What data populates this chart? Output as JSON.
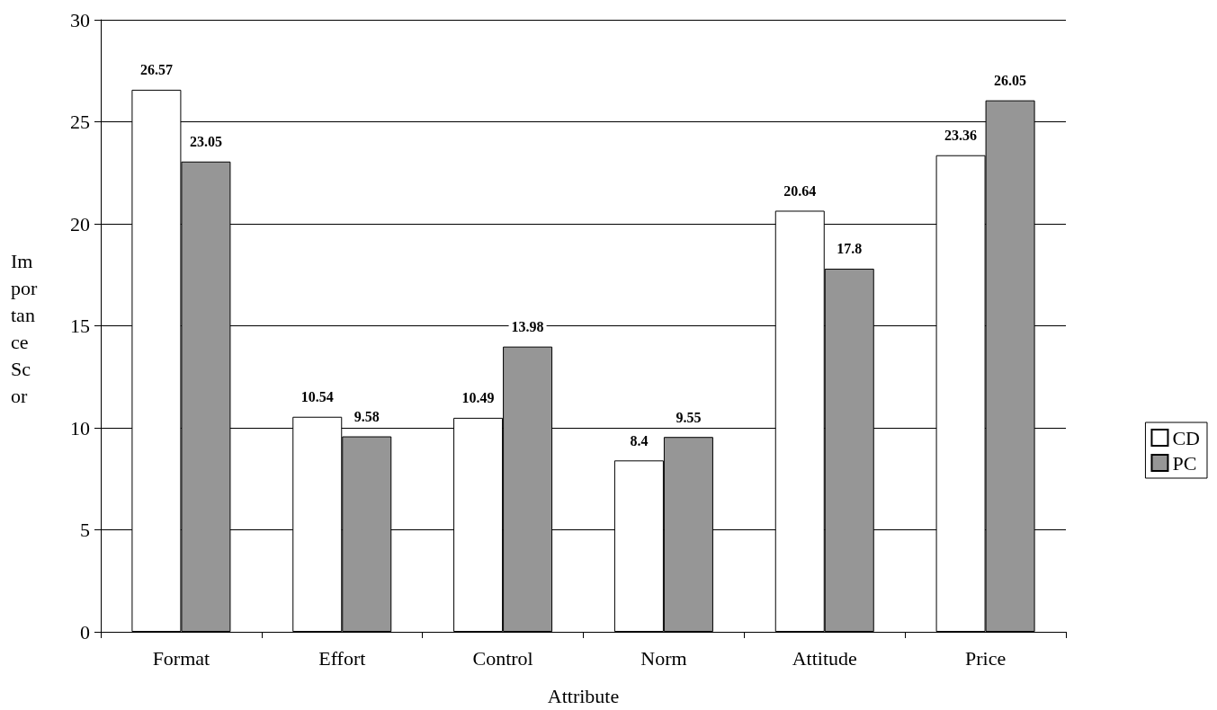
{
  "chart_data": {
    "type": "bar",
    "xlabel": "Attribute",
    "ylabel": "Importance Scor",
    "categories": [
      "Format",
      "Effort",
      "Control",
      "Norm",
      "Attitude",
      "Price"
    ],
    "series": [
      {
        "name": "CD",
        "color": "#ffffff",
        "values": [
          26.57,
          10.54,
          10.49,
          8.4,
          20.64,
          23.36
        ]
      },
      {
        "name": "PC",
        "color": "#969696",
        "values": [
          23.05,
          9.58,
          13.98,
          9.55,
          17.8,
          26.05
        ]
      }
    ],
    "ylim": [
      0,
      30
    ],
    "yticks": [
      0,
      5,
      10,
      15,
      20,
      25,
      30
    ],
    "grid": "y",
    "legend": "right",
    "data_labels": true
  }
}
